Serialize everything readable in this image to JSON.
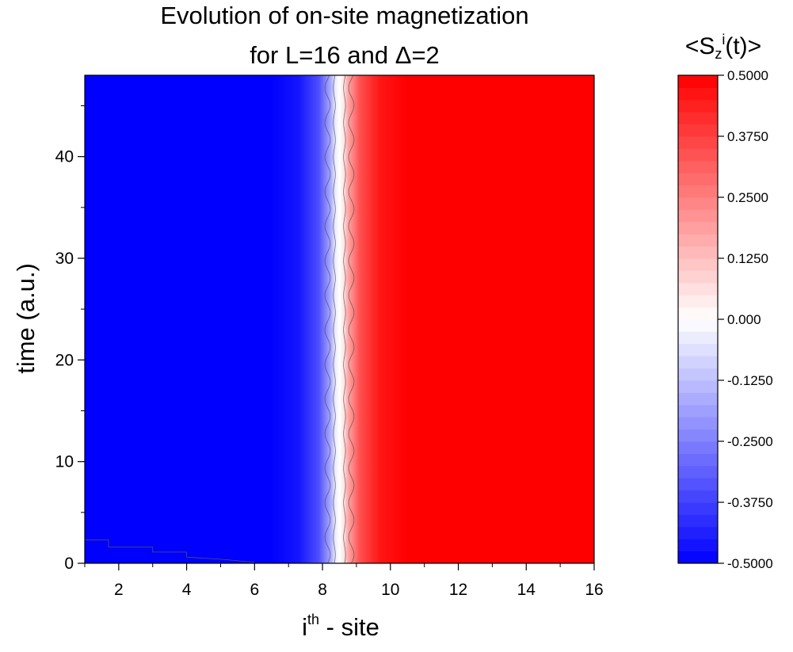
{
  "chart_data": {
    "type": "heatmap",
    "title_line1": "Evolution of on-site magnetization",
    "title_line2": "for L=16 and Δ=2",
    "xlabel_sup": "th",
    "xlabel_base": "i",
    "xlabel_rest": " - site",
    "ylabel": "time (a.u.)",
    "colorbar_title": {
      "pre": "<S",
      "sub": "z",
      "sup": "i",
      "post": "(t)>"
    },
    "x_range": [
      1,
      16
    ],
    "y_range": [
      0,
      48
    ],
    "x_ticks": [
      "2",
      "4",
      "6",
      "8",
      "10",
      "12",
      "14",
      "16"
    ],
    "x_tick_values": [
      2,
      4,
      6,
      8,
      10,
      12,
      14,
      16
    ],
    "y_ticks": [
      "0",
      "10",
      "20",
      "30",
      "40"
    ],
    "y_tick_values": [
      0,
      10,
      20,
      30,
      40
    ],
    "colorbar_ticks": [
      "0.5000",
      "0.3750",
      "0.2500",
      "0.1250",
      "0.000",
      "-0.1250",
      "-0.2500",
      "-0.3750",
      "-0.5000"
    ],
    "colorbar_tick_values": [
      0.5,
      0.375,
      0.25,
      0.125,
      0,
      -0.125,
      -0.25,
      -0.375,
      -0.5
    ],
    "colorbar_range": [
      -0.5,
      0.5
    ],
    "colors": {
      "low": "#0000ff",
      "mid": "#ffffff",
      "high": "#ff0000"
    },
    "description_values": {
      "sites_1_to_8_magnetization": -0.5,
      "sites_9_to_16_magnetization": 0.5,
      "domain_wall_center_site": 8.5
    }
  }
}
